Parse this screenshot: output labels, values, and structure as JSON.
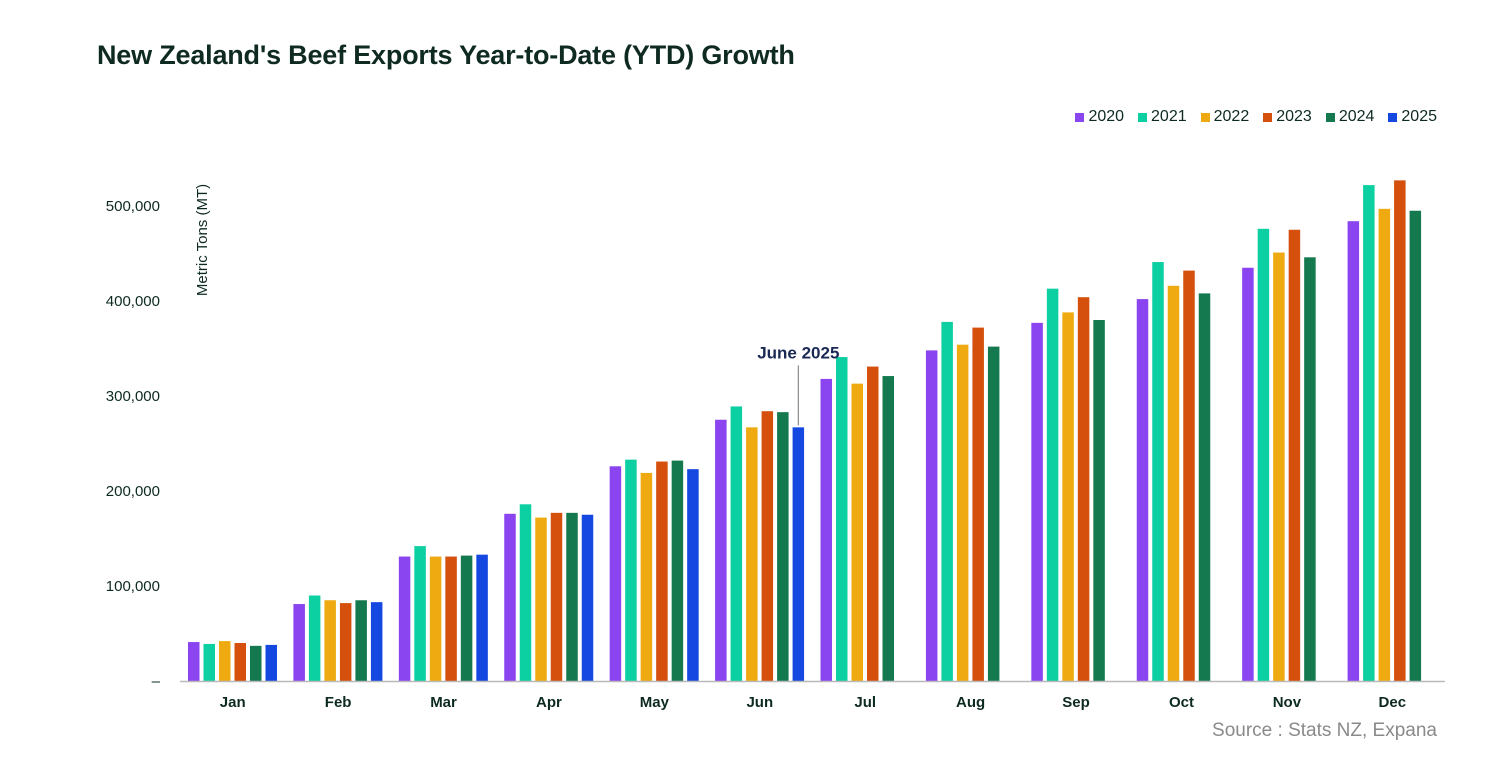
{
  "chart_data": {
    "type": "bar",
    "title": "New Zealand's Beef Exports Year-to-Date (YTD) Growth",
    "ylabel": "Metric Tons (MT)",
    "xlabel": "",
    "ylim": [
      0,
      560000
    ],
    "yticks": [
      0,
      100000,
      200000,
      300000,
      400000,
      500000
    ],
    "ytick_labels": [
      "–",
      "100,000",
      "200,000",
      "300,000",
      "400,000",
      "500,000"
    ],
    "categories": [
      "Jan",
      "Feb",
      "Mar",
      "Apr",
      "May",
      "Jun",
      "Jul",
      "Aug",
      "Sep",
      "Oct",
      "Nov",
      "Dec"
    ],
    "series": [
      {
        "name": "2020",
        "color": "#8a44f0",
        "values": [
          41000,
          81000,
          131000,
          176000,
          226000,
          275000,
          318000,
          348000,
          377000,
          402000,
          435000,
          484000
        ]
      },
      {
        "name": "2021",
        "color": "#0ccfa2",
        "values": [
          39000,
          90000,
          142000,
          186000,
          233000,
          289000,
          341000,
          378000,
          413000,
          441000,
          476000,
          522000
        ]
      },
      {
        "name": "2022",
        "color": "#eeaa10",
        "values": [
          42000,
          85000,
          131000,
          172000,
          219000,
          267000,
          313000,
          354000,
          388000,
          416000,
          451000,
          497000
        ]
      },
      {
        "name": "2023",
        "color": "#d4500c",
        "values": [
          40000,
          82000,
          131000,
          177000,
          231000,
          284000,
          331000,
          372000,
          404000,
          432000,
          475000,
          527000
        ]
      },
      {
        "name": "2024",
        "color": "#15794f",
        "values": [
          37000,
          85000,
          132000,
          177000,
          232000,
          283000,
          321000,
          352000,
          380000,
          408000,
          446000,
          495000
        ]
      },
      {
        "name": "2025",
        "color": "#1448e0",
        "values": [
          38000,
          83000,
          133000,
          175000,
          223000,
          267000,
          null,
          null,
          null,
          null,
          null,
          null
        ]
      }
    ],
    "annotations": [
      {
        "text": "June 2025",
        "category": "Jun",
        "series": "2025"
      }
    ],
    "legend_position": "top-right",
    "grid": false
  },
  "source": "Source : Stats NZ, Expana"
}
